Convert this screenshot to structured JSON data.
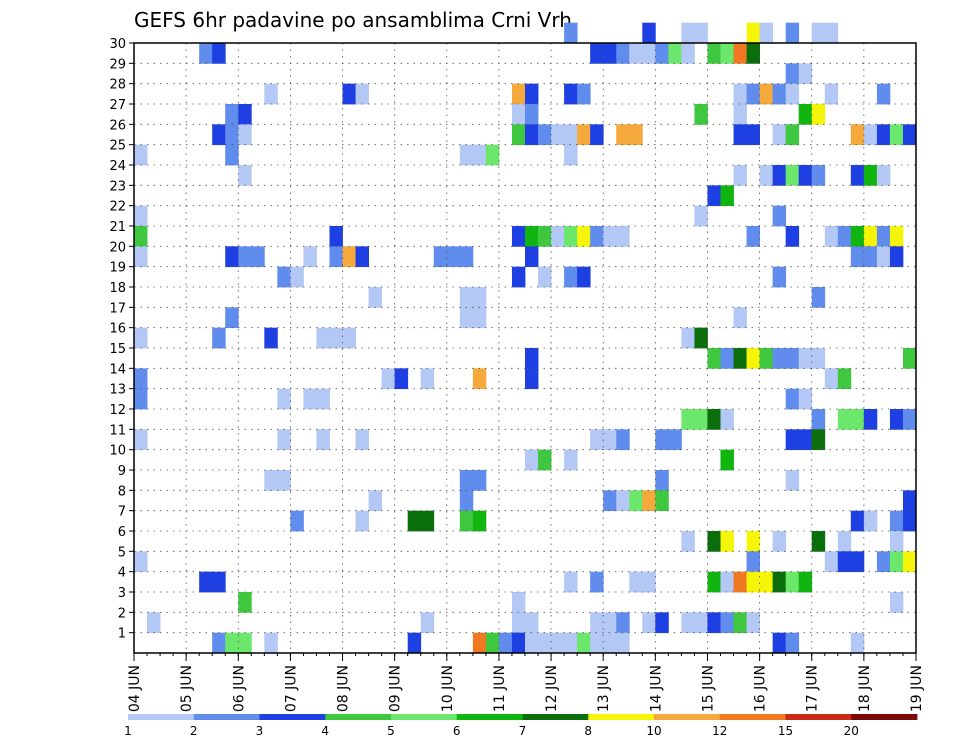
{
  "chart_data": {
    "type": "heatmap",
    "title": "GEFS 6hr padavine po ansamblima Crni Vrh",
    "x_ticks": [
      "04 JUN",
      "05 JUN",
      "06 JUN",
      "07 JUN",
      "08 JUN",
      "09 JUN",
      "10 JUN",
      "11 JUN",
      "12 JUN",
      "13 JUN",
      "14 JUN",
      "15 JUN",
      "16 JUN",
      "17 JUN",
      "18 JUN",
      "19 JUN"
    ],
    "y_ticks": [
      1,
      2,
      3,
      4,
      5,
      6,
      7,
      8,
      9,
      10,
      11,
      12,
      13,
      14,
      15,
      16,
      17,
      18,
      19,
      20,
      21,
      22,
      23,
      24,
      25,
      26,
      27,
      28,
      29,
      30
    ],
    "steps_per_day": 4,
    "xlim": [
      0,
      60
    ],
    "ylim": [
      0,
      30
    ],
    "grid": true,
    "legend_position": "bottom",
    "legend": {
      "labels": [
        "1",
        "2",
        "3",
        "4",
        "5",
        "6",
        "7",
        "8",
        "10",
        "12",
        "15",
        "20"
      ],
      "colors": [
        "#b4c8f5",
        "#5f8ced",
        "#1e3fe1",
        "#3fc83f",
        "#6be76b",
        "#10b510",
        "#0a6e0a",
        "#f5f50a",
        "#f5a83c",
        "#f07820",
        "#cc2a16",
        "#7d0808"
      ]
    },
    "cells": [
      [
        30,
        33,
        2
      ],
      [
        30,
        39,
        3
      ],
      [
        30,
        42,
        1
      ],
      [
        30,
        43,
        1
      ],
      [
        30,
        47,
        8
      ],
      [
        30,
        48,
        1
      ],
      [
        30,
        50,
        2
      ],
      [
        30,
        52,
        1
      ],
      [
        30,
        53,
        1
      ],
      [
        29,
        5,
        2
      ],
      [
        29,
        6,
        3
      ],
      [
        29,
        35,
        3
      ],
      [
        29,
        36,
        3
      ],
      [
        29,
        37,
        2
      ],
      [
        29,
        38,
        1
      ],
      [
        29,
        39,
        1
      ],
      [
        29,
        40,
        2
      ],
      [
        29,
        41,
        5
      ],
      [
        29,
        42,
        1
      ],
      [
        29,
        44,
        4
      ],
      [
        29,
        45,
        5
      ],
      [
        29,
        46,
        12
      ],
      [
        29,
        47,
        7
      ],
      [
        28,
        50,
        2
      ],
      [
        28,
        51,
        1
      ],
      [
        27,
        10,
        1
      ],
      [
        27,
        16,
        3
      ],
      [
        27,
        17,
        1
      ],
      [
        27,
        29,
        10
      ],
      [
        27,
        30,
        3
      ],
      [
        27,
        33,
        3
      ],
      [
        27,
        34,
        2
      ],
      [
        27,
        46,
        1
      ],
      [
        27,
        47,
        2
      ],
      [
        27,
        48,
        10
      ],
      [
        27,
        49,
        2
      ],
      [
        27,
        50,
        1
      ],
      [
        27,
        53,
        1
      ],
      [
        27,
        57,
        2
      ],
      [
        26,
        7,
        2
      ],
      [
        26,
        8,
        3
      ],
      [
        26,
        29,
        1
      ],
      [
        26,
        30,
        2
      ],
      [
        26,
        43,
        4
      ],
      [
        26,
        46,
        1
      ],
      [
        26,
        51,
        6
      ],
      [
        26,
        52,
        8
      ],
      [
        25,
        6,
        3
      ],
      [
        25,
        7,
        2
      ],
      [
        25,
        8,
        1
      ],
      [
        25,
        29,
        4
      ],
      [
        25,
        30,
        3
      ],
      [
        25,
        31,
        2
      ],
      [
        25,
        32,
        1
      ],
      [
        25,
        33,
        1
      ],
      [
        25,
        34,
        10
      ],
      [
        25,
        35,
        3
      ],
      [
        25,
        37,
        10
      ],
      [
        25,
        38,
        10
      ],
      [
        25,
        46,
        3
      ],
      [
        25,
        47,
        3
      ],
      [
        25,
        49,
        1
      ],
      [
        25,
        50,
        4
      ],
      [
        25,
        55,
        10
      ],
      [
        25,
        56,
        1
      ],
      [
        25,
        57,
        3
      ],
      [
        25,
        58,
        5
      ],
      [
        25,
        59,
        3
      ],
      [
        24,
        0,
        1
      ],
      [
        24,
        7,
        2
      ],
      [
        24,
        25,
        1
      ],
      [
        24,
        26,
        1
      ],
      [
        24,
        27,
        5
      ],
      [
        24,
        33,
        1
      ],
      [
        23,
        8,
        1
      ],
      [
        23,
        46,
        1
      ],
      [
        23,
        48,
        1
      ],
      [
        23,
        49,
        3
      ],
      [
        23,
        50,
        5
      ],
      [
        23,
        51,
        3
      ],
      [
        23,
        52,
        2
      ],
      [
        23,
        55,
        3
      ],
      [
        23,
        56,
        6
      ],
      [
        23,
        57,
        1
      ],
      [
        22,
        44,
        3
      ],
      [
        22,
        45,
        6
      ],
      [
        21,
        0,
        1
      ],
      [
        21,
        43,
        1
      ],
      [
        21,
        49,
        2
      ],
      [
        20,
        0,
        4
      ],
      [
        20,
        15,
        3
      ],
      [
        20,
        29,
        3
      ],
      [
        20,
        30,
        6
      ],
      [
        20,
        31,
        4
      ],
      [
        20,
        32,
        1
      ],
      [
        20,
        33,
        5
      ],
      [
        20,
        34,
        8
      ],
      [
        20,
        35,
        2
      ],
      [
        20,
        36,
        1
      ],
      [
        20,
        37,
        1
      ],
      [
        20,
        47,
        2
      ],
      [
        20,
        50,
        3
      ],
      [
        20,
        53,
        1
      ],
      [
        20,
        54,
        2
      ],
      [
        20,
        55,
        6
      ],
      [
        20,
        56,
        8
      ],
      [
        20,
        57,
        2
      ],
      [
        20,
        58,
        8
      ],
      [
        19,
        0,
        1
      ],
      [
        19,
        7,
        3
      ],
      [
        19,
        8,
        2
      ],
      [
        19,
        9,
        2
      ],
      [
        19,
        13,
        1
      ],
      [
        19,
        15,
        2
      ],
      [
        19,
        16,
        10
      ],
      [
        19,
        17,
        3
      ],
      [
        19,
        23,
        2
      ],
      [
        19,
        24,
        2
      ],
      [
        19,
        25,
        2
      ],
      [
        19,
        30,
        3
      ],
      [
        19,
        55,
        2
      ],
      [
        19,
        56,
        2
      ],
      [
        19,
        57,
        1
      ],
      [
        19,
        58,
        3
      ],
      [
        18,
        11,
        2
      ],
      [
        18,
        12,
        1
      ],
      [
        18,
        29,
        3
      ],
      [
        18,
        31,
        1
      ],
      [
        18,
        33,
        2
      ],
      [
        18,
        34,
        3
      ],
      [
        18,
        49,
        2
      ],
      [
        17,
        18,
        1
      ],
      [
        17,
        25,
        1
      ],
      [
        17,
        26,
        1
      ],
      [
        17,
        52,
        2
      ],
      [
        16,
        7,
        2
      ],
      [
        16,
        25,
        1
      ],
      [
        16,
        26,
        1
      ],
      [
        16,
        46,
        1
      ],
      [
        15,
        0,
        1
      ],
      [
        15,
        6,
        2
      ],
      [
        15,
        10,
        3
      ],
      [
        15,
        14,
        1
      ],
      [
        15,
        15,
        1
      ],
      [
        15,
        16,
        1
      ],
      [
        15,
        42,
        1
      ],
      [
        15,
        43,
        7
      ],
      [
        14,
        30,
        3
      ],
      [
        14,
        44,
        4
      ],
      [
        14,
        45,
        2
      ],
      [
        14,
        46,
        7
      ],
      [
        14,
        47,
        8
      ],
      [
        14,
        48,
        4
      ],
      [
        14,
        49,
        2
      ],
      [
        14,
        50,
        2
      ],
      [
        14,
        51,
        1
      ],
      [
        14,
        52,
        1
      ],
      [
        14,
        59,
        4
      ],
      [
        13,
        0,
        2
      ],
      [
        13,
        19,
        1
      ],
      [
        13,
        20,
        3
      ],
      [
        13,
        22,
        1
      ],
      [
        13,
        26,
        10
      ],
      [
        13,
        30,
        3
      ],
      [
        13,
        53,
        1
      ],
      [
        13,
        54,
        4
      ],
      [
        12,
        0,
        2
      ],
      [
        12,
        11,
        1
      ],
      [
        12,
        13,
        1
      ],
      [
        12,
        14,
        1
      ],
      [
        12,
        50,
        2
      ],
      [
        12,
        51,
        1
      ],
      [
        11,
        42,
        5
      ],
      [
        11,
        43,
        5
      ],
      [
        11,
        44,
        7
      ],
      [
        11,
        45,
        1
      ],
      [
        11,
        52,
        2
      ],
      [
        11,
        54,
        5
      ],
      [
        11,
        55,
        5
      ],
      [
        11,
        56,
        3
      ],
      [
        11,
        58,
        3
      ],
      [
        11,
        59,
        2
      ],
      [
        10,
        0,
        1
      ],
      [
        10,
        11,
        1
      ],
      [
        10,
        14,
        1
      ],
      [
        10,
        17,
        1
      ],
      [
        10,
        35,
        1
      ],
      [
        10,
        36,
        1
      ],
      [
        10,
        37,
        2
      ],
      [
        10,
        40,
        2
      ],
      [
        10,
        41,
        2
      ],
      [
        10,
        50,
        3
      ],
      [
        10,
        51,
        3
      ],
      [
        10,
        52,
        7
      ],
      [
        9,
        30,
        1
      ],
      [
        9,
        31,
        4
      ],
      [
        9,
        33,
        1
      ],
      [
        9,
        45,
        6
      ],
      [
        8,
        10,
        1
      ],
      [
        8,
        11,
        1
      ],
      [
        8,
        25,
        2
      ],
      [
        8,
        26,
        2
      ],
      [
        8,
        40,
        2
      ],
      [
        8,
        50,
        1
      ],
      [
        7,
        18,
        1
      ],
      [
        7,
        25,
        2
      ],
      [
        7,
        36,
        2
      ],
      [
        7,
        37,
        1
      ],
      [
        7,
        38,
        5
      ],
      [
        7,
        39,
        10
      ],
      [
        7,
        40,
        4
      ],
      [
        7,
        59,
        3
      ],
      [
        6,
        12,
        2
      ],
      [
        6,
        17,
        1
      ],
      [
        6,
        21,
        7
      ],
      [
        6,
        22,
        7
      ],
      [
        6,
        25,
        4
      ],
      [
        6,
        26,
        6
      ],
      [
        6,
        55,
        3
      ],
      [
        6,
        56,
        1
      ],
      [
        6,
        58,
        2
      ],
      [
        6,
        59,
        3
      ],
      [
        5,
        42,
        1
      ],
      [
        5,
        44,
        7
      ],
      [
        5,
        45,
        8
      ],
      [
        5,
        47,
        8
      ],
      [
        5,
        49,
        1
      ],
      [
        5,
        52,
        7
      ],
      [
        5,
        54,
        1
      ],
      [
        5,
        58,
        1
      ],
      [
        4,
        0,
        1
      ],
      [
        4,
        47,
        2
      ],
      [
        4,
        53,
        1
      ],
      [
        4,
        54,
        3
      ],
      [
        4,
        55,
        3
      ],
      [
        4,
        57,
        2
      ],
      [
        4,
        58,
        5
      ],
      [
        4,
        59,
        8
      ],
      [
        3,
        5,
        3
      ],
      [
        3,
        6,
        3
      ],
      [
        3,
        33,
        1
      ],
      [
        3,
        35,
        2
      ],
      [
        3,
        38,
        1
      ],
      [
        3,
        39,
        1
      ],
      [
        3,
        44,
        6
      ],
      [
        3,
        45,
        1
      ],
      [
        3,
        46,
        12
      ],
      [
        3,
        47,
        8
      ],
      [
        3,
        48,
        8
      ],
      [
        3,
        49,
        7
      ],
      [
        3,
        50,
        5
      ],
      [
        3,
        51,
        6
      ],
      [
        2,
        8,
        4
      ],
      [
        2,
        29,
        1
      ],
      [
        2,
        58,
        1
      ],
      [
        1,
        1,
        1
      ],
      [
        1,
        22,
        1
      ],
      [
        1,
        29,
        1
      ],
      [
        1,
        30,
        1
      ],
      [
        1,
        35,
        1
      ],
      [
        1,
        36,
        1
      ],
      [
        1,
        37,
        2
      ],
      [
        1,
        39,
        1
      ],
      [
        1,
        40,
        3
      ],
      [
        1,
        42,
        1
      ],
      [
        1,
        43,
        1
      ],
      [
        1,
        44,
        3
      ],
      [
        1,
        45,
        2
      ],
      [
        1,
        46,
        4
      ],
      [
        1,
        47,
        1
      ],
      [
        0,
        6,
        2
      ],
      [
        0,
        7,
        5
      ],
      [
        0,
        8,
        5
      ],
      [
        0,
        10,
        1
      ],
      [
        0,
        21,
        3
      ],
      [
        0,
        26,
        12
      ],
      [
        0,
        27,
        4
      ],
      [
        0,
        28,
        2
      ],
      [
        0,
        29,
        3
      ],
      [
        0,
        30,
        1
      ],
      [
        0,
        31,
        1
      ],
      [
        0,
        32,
        1
      ],
      [
        0,
        33,
        1
      ],
      [
        0,
        34,
        5
      ],
      [
        0,
        35,
        1
      ],
      [
        0,
        36,
        1
      ],
      [
        0,
        37,
        1
      ],
      [
        0,
        49,
        3
      ],
      [
        0,
        50,
        2
      ],
      [
        0,
        55,
        1
      ]
    ]
  }
}
